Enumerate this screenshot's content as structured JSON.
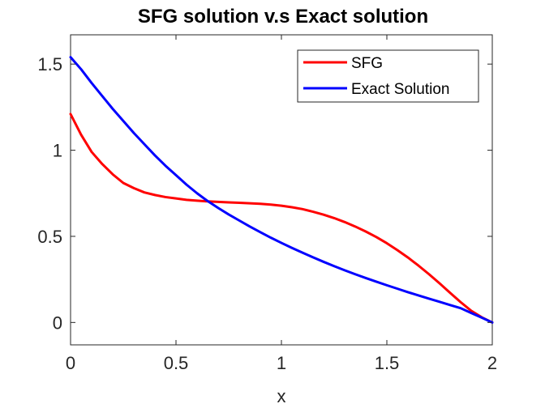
{
  "chart_data": {
    "type": "line",
    "title": "SFG solution v.s Exact solution",
    "xlabel": "x",
    "ylabel": "",
    "xlim": [
      0,
      2
    ],
    "ylim": [
      -0.13,
      1.67
    ],
    "xticks": [
      0,
      0.5,
      1,
      1.5,
      2
    ],
    "xtick_labels": [
      "0",
      "0.5",
      "1",
      "1.5",
      "2"
    ],
    "yticks": [
      0,
      0.5,
      1,
      1.5
    ],
    "ytick_labels": [
      "0",
      "0.5",
      "1",
      "1.5"
    ],
    "grid": false,
    "legend_position": "top-right",
    "series": [
      {
        "name": "SFG",
        "color": "#ff0000",
        "x": [
          0,
          0.05,
          0.1,
          0.15,
          0.2,
          0.25,
          0.3,
          0.35,
          0.4,
          0.45,
          0.5,
          0.55,
          0.6,
          0.65,
          0.7,
          0.75,
          0.8,
          0.85,
          0.9,
          0.95,
          1.0,
          1.05,
          1.1,
          1.15,
          1.2,
          1.25,
          1.3,
          1.35,
          1.4,
          1.45,
          1.5,
          1.55,
          1.6,
          1.65,
          1.7,
          1.75,
          1.8,
          1.85,
          1.9,
          1.95,
          2.0
        ],
        "y": [
          1.21,
          1.09,
          0.99,
          0.92,
          0.86,
          0.81,
          0.78,
          0.755,
          0.74,
          0.728,
          0.72,
          0.712,
          0.707,
          0.703,
          0.7,
          0.697,
          0.695,
          0.692,
          0.689,
          0.684,
          0.678,
          0.669,
          0.658,
          0.643,
          0.626,
          0.606,
          0.583,
          0.557,
          0.528,
          0.496,
          0.46,
          0.42,
          0.377,
          0.33,
          0.28,
          0.227,
          0.172,
          0.118,
          0.068,
          0.03,
          0.0
        ]
      },
      {
        "name": "Exact Solution",
        "color": "#0000ff",
        "x": [
          0,
          0.05,
          0.1,
          0.15,
          0.2,
          0.25,
          0.3,
          0.35,
          0.4,
          0.45,
          0.5,
          0.55,
          0.6,
          0.65,
          0.7,
          0.75,
          0.8,
          0.85,
          0.9,
          0.95,
          1.0,
          1.05,
          1.1,
          1.15,
          1.2,
          1.25,
          1.3,
          1.35,
          1.4,
          1.45,
          1.5,
          1.55,
          1.6,
          1.65,
          1.7,
          1.75,
          1.8,
          1.85,
          1.9,
          1.95,
          2.0
        ],
        "y": [
          1.54,
          1.47,
          1.39,
          1.315,
          1.24,
          1.17,
          1.1,
          1.035,
          0.97,
          0.91,
          0.855,
          0.8,
          0.75,
          0.705,
          0.665,
          0.627,
          0.592,
          0.557,
          0.524,
          0.492,
          0.462,
          0.433,
          0.405,
          0.378,
          0.352,
          0.327,
          0.303,
          0.28,
          0.258,
          0.237,
          0.216,
          0.196,
          0.176,
          0.157,
          0.138,
          0.12,
          0.101,
          0.083,
          0.055,
          0.028,
          0.0
        ]
      }
    ]
  }
}
